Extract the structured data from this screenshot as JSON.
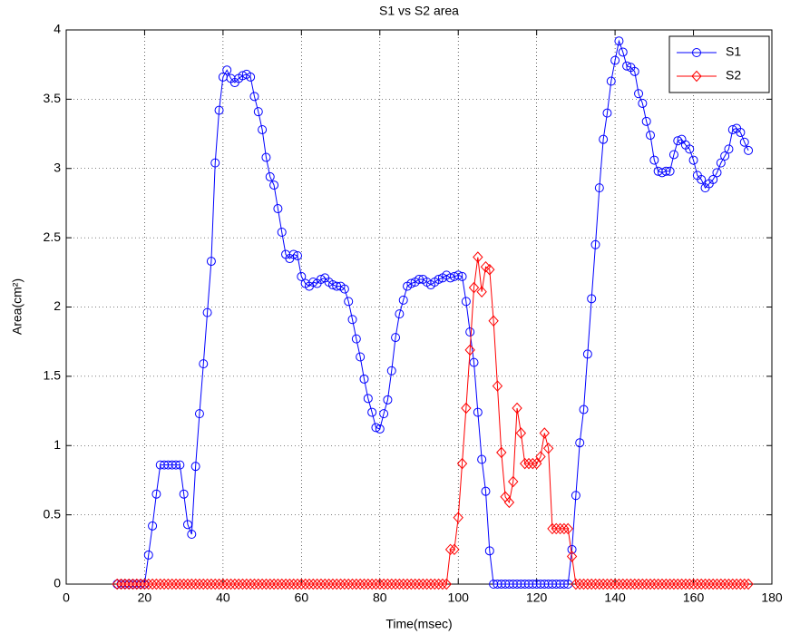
{
  "chart_data": {
    "type": "line",
    "title": "S1 vs S2 area",
    "x_label": "Time(msec)",
    "y_label": "Area(cm²)",
    "x": [
      13,
      14,
      15,
      16,
      17,
      18,
      19,
      20,
      21,
      22,
      23,
      24,
      25,
      26,
      27,
      28,
      29,
      30,
      31,
      32,
      33,
      34,
      35,
      36,
      37,
      38,
      39,
      40,
      41,
      42,
      43,
      44,
      45,
      46,
      47,
      48,
      49,
      50,
      51,
      52,
      53,
      54,
      55,
      56,
      57,
      58,
      59,
      60,
      61,
      62,
      63,
      64,
      65,
      66,
      67,
      68,
      69,
      70,
      71,
      72,
      73,
      74,
      75,
      76,
      77,
      78,
      79,
      80,
      81,
      82,
      83,
      84,
      85,
      86,
      87,
      88,
      89,
      90,
      91,
      92,
      93,
      94,
      95,
      96,
      97,
      98,
      99,
      100,
      101,
      102,
      103,
      104,
      105,
      106,
      107,
      108,
      109,
      110,
      111,
      112,
      113,
      114,
      115,
      116,
      117,
      118,
      119,
      120,
      121,
      122,
      123,
      124,
      125,
      126,
      127,
      128,
      129,
      130,
      131,
      132,
      133,
      134,
      135,
      136,
      137,
      138,
      139,
      140,
      141,
      142,
      143,
      144,
      145,
      146,
      147,
      148,
      149,
      150,
      151,
      152,
      153,
      154,
      155,
      156,
      157,
      158,
      159,
      160,
      161,
      162,
      163,
      164,
      165,
      166,
      167,
      168,
      169,
      170,
      171,
      172,
      173,
      174
    ],
    "series": [
      {
        "name": "S1",
        "color": "#0000ff",
        "marker": "circle",
        "values": [
          0,
          0,
          0,
          0,
          0,
          0,
          0,
          0,
          0.21,
          0.42,
          0.65,
          0.86,
          0.86,
          0.86,
          0.86,
          0.86,
          0.86,
          0.65,
          0.43,
          0.36,
          0.85,
          1.23,
          1.59,
          1.96,
          2.33,
          3.04,
          3.42,
          3.66,
          3.71,
          3.65,
          3.62,
          3.65,
          3.67,
          3.68,
          3.66,
          3.52,
          3.41,
          3.28,
          3.08,
          2.94,
          2.88,
          2.71,
          2.54,
          2.38,
          2.35,
          2.38,
          2.37,
          2.22,
          2.17,
          2.15,
          2.18,
          2.17,
          2.2,
          2.21,
          2.18,
          2.16,
          2.15,
          2.15,
          2.13,
          2.04,
          1.91,
          1.77,
          1.64,
          1.48,
          1.34,
          1.24,
          1.13,
          1.12,
          1.23,
          1.33,
          1.54,
          1.78,
          1.95,
          2.05,
          2.15,
          2.17,
          2.18,
          2.2,
          2.2,
          2.18,
          2.16,
          2.18,
          2.2,
          2.21,
          2.23,
          2.21,
          2.22,
          2.23,
          2.22,
          2.04,
          1.82,
          1.6,
          1.24,
          0.9,
          0.67,
          0.24,
          0,
          0,
          0,
          0,
          0,
          0,
          0,
          0,
          0,
          0,
          0,
          0,
          0,
          0,
          0,
          0,
          0,
          0,
          0,
          0,
          0.25,
          0.64,
          1.02,
          1.26,
          1.66,
          2.06,
          2.45,
          2.86,
          3.21,
          3.4,
          3.63,
          3.78,
          3.92,
          3.84,
          3.74,
          3.73,
          3.7,
          3.54,
          3.47,
          3.34,
          3.24,
          3.06,
          2.98,
          2.97,
          2.98,
          2.98,
          3.1,
          3.2,
          3.21,
          3.17,
          3.14,
          3.06,
          2.95,
          2.92,
          2.86,
          2.89,
          2.92,
          2.97,
          3.04,
          3.09,
          3.14,
          3.28,
          3.29,
          3.26,
          3.19,
          3.13
        ]
      },
      {
        "name": "S2",
        "color": "#ff0000",
        "marker": "diamond",
        "values": [
          0,
          0,
          0,
          0,
          0,
          0,
          0,
          0,
          0,
          0,
          0,
          0,
          0,
          0,
          0,
          0,
          0,
          0,
          0,
          0,
          0,
          0,
          0,
          0,
          0,
          0,
          0,
          0,
          0,
          0,
          0,
          0,
          0,
          0,
          0,
          0,
          0,
          0,
          0,
          0,
          0,
          0,
          0,
          0,
          0,
          0,
          0,
          0,
          0,
          0,
          0,
          0,
          0,
          0,
          0,
          0,
          0,
          0,
          0,
          0,
          0,
          0,
          0,
          0,
          0,
          0,
          0,
          0,
          0,
          0,
          0,
          0,
          0,
          0,
          0,
          0,
          0,
          0,
          0,
          0,
          0,
          0,
          0,
          0,
          0,
          0.25,
          0.25,
          0.48,
          0.87,
          1.27,
          1.69,
          2.14,
          2.36,
          2.11,
          2.29,
          2.27,
          1.9,
          1.43,
          0.95,
          0.63,
          0.59,
          0.74,
          1.27,
          1.09,
          0.87,
          0.87,
          0.87,
          0.87,
          0.92,
          1.09,
          0.98,
          0.4,
          0.4,
          0.4,
          0.4,
          0.4,
          0.2,
          0,
          0,
          0,
          0,
          0,
          0,
          0,
          0,
          0,
          0,
          0,
          0,
          0,
          0,
          0,
          0,
          0,
          0,
          0,
          0,
          0,
          0,
          0,
          0,
          0,
          0,
          0,
          0,
          0,
          0,
          0,
          0,
          0,
          0,
          0,
          0,
          0,
          0,
          0,
          0,
          0,
          0,
          0,
          0,
          0
        ]
      }
    ],
    "xlim": [
      0,
      180
    ],
    "xticks": [
      0,
      20,
      40,
      60,
      80,
      100,
      120,
      140,
      160,
      180
    ],
    "ylim": [
      0,
      4
    ],
    "yticks": [
      0,
      0.5,
      1,
      1.5,
      2,
      2.5,
      3,
      3.5,
      4
    ],
    "grid": true,
    "legend": "top-right"
  }
}
